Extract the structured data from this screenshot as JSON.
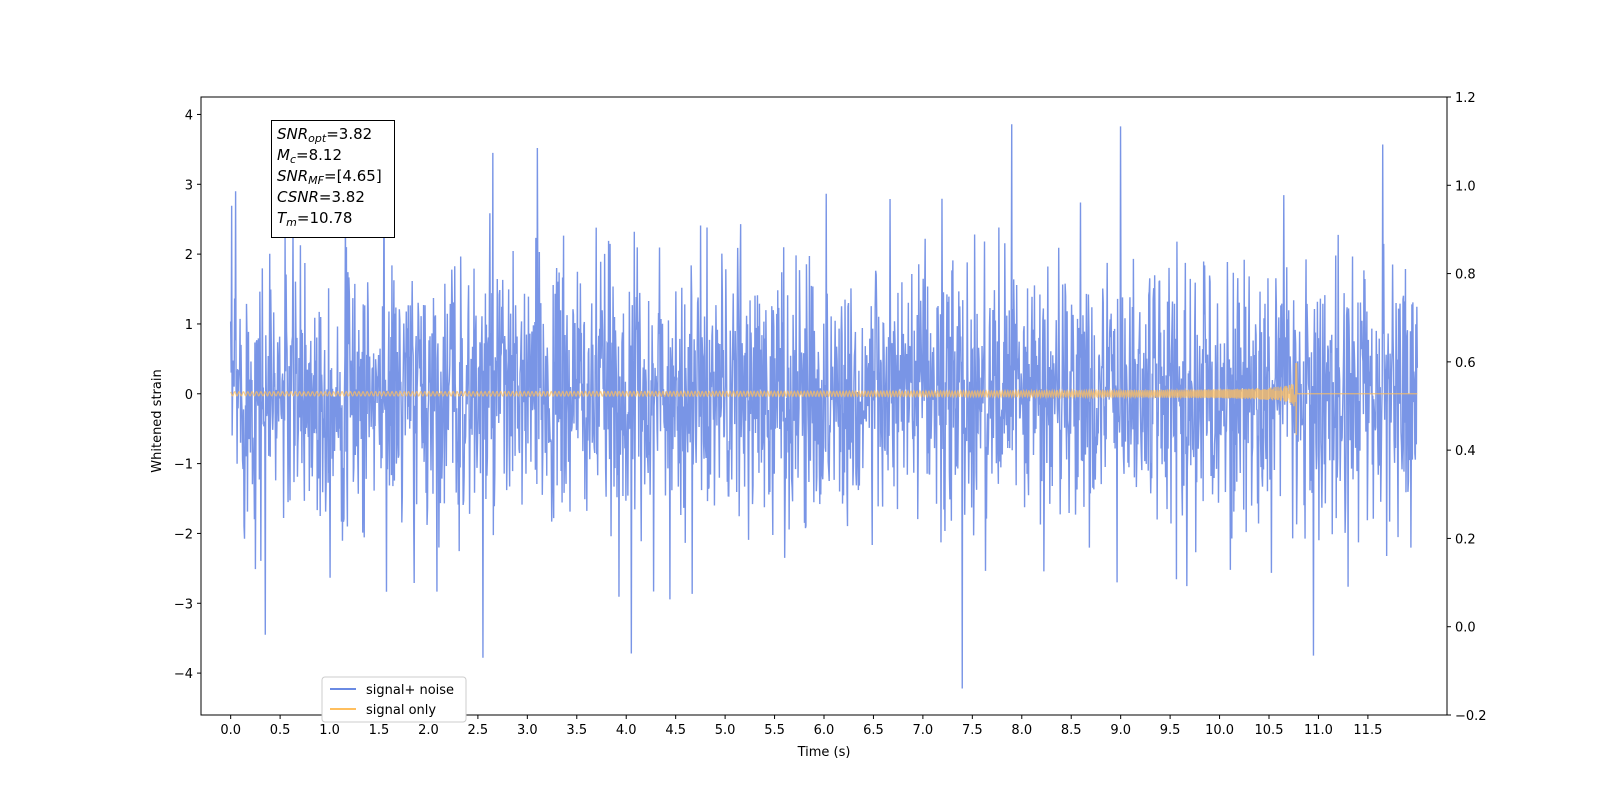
{
  "chart_data": {
    "type": "line",
    "xlabel": "Time (s)",
    "ylabel": "Whitened strain",
    "x_ticks": [
      "0.0",
      "0.5",
      "1.0",
      "1.5",
      "2.0",
      "2.5",
      "3.0",
      "3.5",
      "4.0",
      "4.5",
      "5.0",
      "5.5",
      "6.0",
      "6.5",
      "7.0",
      "7.5",
      "8.0",
      "8.5",
      "9.0",
      "9.5",
      "10.0",
      "10.5",
      "11.0",
      "11.5"
    ],
    "y_left_ticks": [
      "4",
      "3",
      "2",
      "1",
      "0",
      "−1",
      "−2",
      "−3",
      "−4"
    ],
    "y_right_ticks": [
      "1.2",
      "1.0",
      "0.8",
      "0.6",
      "0.4",
      "0.2",
      "0.0",
      "−0.2"
    ],
    "xlim": [
      -0.3,
      12.3
    ],
    "ylim_left": [
      -4.6,
      4.25
    ],
    "ylim_right": [
      -0.2,
      1.2
    ],
    "legend_position": "lower-left",
    "series": [
      {
        "name": "signal+ noise",
        "color": "#6a8ae3",
        "axis": "left",
        "x_range": [
          0.0,
          12.0
        ],
        "approx_envelope": {
          "max": 3.88,
          "min": -4.22,
          "typical_abs": 1.8
        },
        "notable_peaks": [
          {
            "x": 0.05,
            "y": 2.9
          },
          {
            "x": 1.55,
            "y": 3.5
          },
          {
            "x": 2.65,
            "y": 3.45
          },
          {
            "x": 3.1,
            "y": 3.52
          },
          {
            "x": 7.9,
            "y": 3.86
          },
          {
            "x": 9.0,
            "y": 3.83
          },
          {
            "x": 11.65,
            "y": 3.57
          },
          {
            "x": 2.55,
            "y": -3.78
          },
          {
            "x": 4.05,
            "y": -3.72
          },
          {
            "x": 7.4,
            "y": -4.22
          },
          {
            "x": 10.95,
            "y": -3.75
          },
          {
            "x": 0.35,
            "y": -3.45
          }
        ]
      },
      {
        "name": "signal only",
        "color": "#ffbf5e",
        "axis": "left",
        "x_range": [
          0.0,
          12.0
        ],
        "description_values": {
          "merger_time": 10.78,
          "peak_amplitude": 0.44,
          "min_amplitude": -0.59,
          "early_amplitude": 0.03
        }
      }
    ],
    "annotation": {
      "lines": [
        {
          "symbol": "SNR",
          "sub": "opt",
          "text": "=3.82"
        },
        {
          "symbol": "M",
          "sub": "c",
          "text": "=8.12"
        },
        {
          "symbol": "SNR",
          "sub": "MF",
          "text": "=[4.65]"
        },
        {
          "symbol": "CSNR",
          "sub": "",
          "text": "=3.82"
        },
        {
          "symbol": "T",
          "sub": "m",
          "text": "=10.78"
        }
      ]
    }
  }
}
